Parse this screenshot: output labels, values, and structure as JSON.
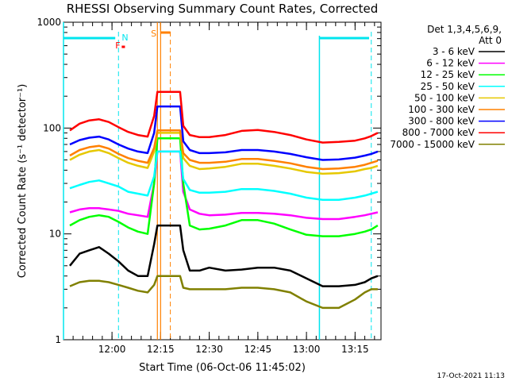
{
  "chart_data": {
    "type": "line",
    "title": "RHESSI Observing Summary Count Rates, Corrected",
    "xlabel": "Start Time (06-Oct-06 11:45:02)",
    "ylabel": "Corrected Count Rate (s⁻¹ detector⁻¹)",
    "yscale": "log",
    "ylim": [
      1,
      1000
    ],
    "xlim": [
      "11:45:02",
      "13:23:00"
    ],
    "x_ticks": [
      "12:00",
      "12:15",
      "12:30",
      "12:45",
      "13:00",
      "13:15"
    ],
    "y_ticks": [
      "1",
      "10",
      "100",
      "1000"
    ],
    "grid": false,
    "legend": {
      "position": "top-right",
      "header": [
        "Det 1,3,4,5,6,9,",
        "Att 0"
      ]
    },
    "markers": {
      "F": "F",
      "N": "N",
      "S": "S"
    },
    "timestamp": "17-Oct-2021 11:13",
    "x": [
      "11:47",
      "11:50",
      "11:53",
      "11:56",
      "11:59",
      "12:02",
      "12:05",
      "12:08",
      "12:11",
      "12:13",
      "12:14",
      "12:21",
      "12:22",
      "12:24",
      "12:27",
      "12:30",
      "12:35",
      "12:40",
      "12:45",
      "12:50",
      "12:55",
      "13:00",
      "13:05",
      "13:10",
      "13:15",
      "13:18",
      "13:20",
      "13:22"
    ],
    "series": [
      {
        "name": "3 - 6 keV",
        "color": "#000000",
        "values": [
          5,
          6.5,
          7,
          7.5,
          6.5,
          5.5,
          4.5,
          4,
          4,
          8,
          12,
          12,
          7,
          4.5,
          4.5,
          4.8,
          4.5,
          4.6,
          4.8,
          4.8,
          4.5,
          3.8,
          3.2,
          3.2,
          3.3,
          3.5,
          3.8,
          4
        ]
      },
      {
        "name": "6 - 12 keV",
        "color": "#ff00ff",
        "values": [
          16,
          17,
          17.5,
          17.5,
          17,
          16.5,
          15.5,
          15,
          14.5,
          30,
          60,
          60,
          25,
          17,
          15.5,
          15,
          15.2,
          15.8,
          15.8,
          15.5,
          15,
          14.2,
          13.8,
          13.8,
          14.5,
          15,
          15.5,
          16
        ]
      },
      {
        "name": "12 - 25 keV",
        "color": "#00ff00",
        "values": [
          12,
          13.5,
          14.5,
          15,
          14.5,
          13,
          11.5,
          10.5,
          10,
          30,
          80,
          80,
          30,
          12,
          11,
          11.2,
          12,
          13.5,
          13.5,
          12.5,
          11,
          9.8,
          9.5,
          9.5,
          10,
          10.5,
          11,
          12
        ]
      },
      {
        "name": "25 - 50 keV",
        "color": "#00ffff",
        "values": [
          27,
          29,
          31,
          32,
          30,
          28,
          25,
          24,
          23,
          35,
          60,
          60,
          33,
          26,
          24.5,
          24.5,
          25,
          26.5,
          26.5,
          25.5,
          24,
          22,
          21,
          21,
          22,
          23,
          24,
          25
        ]
      },
      {
        "name": "50 - 100 keV",
        "color": "#e6c800",
        "values": [
          50,
          56,
          60,
          62,
          58,
          52,
          47,
          44,
          42,
          60,
          90,
          90,
          52,
          44,
          41,
          41.5,
          43,
          46,
          46,
          44,
          41.5,
          38.5,
          37,
          37.5,
          39,
          41,
          42,
          44
        ]
      },
      {
        "name": "100 - 300 keV",
        "color": "#ff8000",
        "values": [
          55,
          62,
          66,
          68,
          64,
          57,
          52,
          49,
          47,
          65,
          95,
          95,
          58,
          50,
          47,
          47,
          48,
          51,
          51,
          49,
          46.5,
          43,
          41,
          41.5,
          43,
          45,
          47,
          49
        ]
      },
      {
        "name": "300 - 800 keV",
        "color": "#0000ff",
        "values": [
          70,
          77,
          81,
          83,
          78,
          70,
          64,
          60,
          58,
          90,
          160,
          160,
          75,
          62,
          58,
          58,
          59,
          62,
          62,
          60,
          57,
          53,
          50,
          50.5,
          52.5,
          55,
          57,
          60
        ]
      },
      {
        "name": "800 - 7000 keV",
        "color": "#ff0000",
        "values": [
          95,
          110,
          118,
          121,
          114,
          102,
          92,
          86,
          83,
          130,
          220,
          220,
          105,
          86,
          82,
          82,
          86,
          94,
          96,
          92,
          86,
          78,
          73,
          74,
          76,
          80,
          84,
          90
        ]
      },
      {
        "name": "7000 - 15000 keV",
        "color": "#808000",
        "values": [
          3.2,
          3.5,
          3.6,
          3.6,
          3.5,
          3.3,
          3.1,
          2.9,
          2.8,
          3.3,
          4,
          4,
          3.1,
          3,
          3,
          3,
          3,
          3.1,
          3.1,
          3,
          2.8,
          2.3,
          2,
          2,
          2.4,
          2.8,
          3,
          3
        ]
      }
    ]
  }
}
